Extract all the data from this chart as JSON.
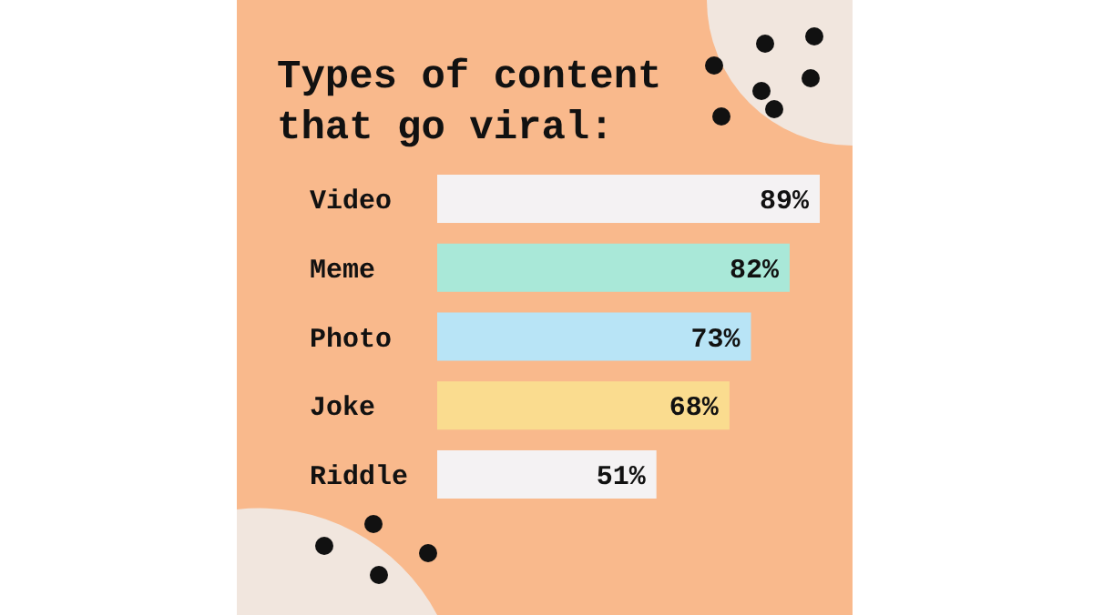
{
  "chart_data": {
    "type": "bar",
    "orientation": "horizontal",
    "title": "Types of content\nthat go viral:",
    "categories": [
      "Video",
      "Meme",
      "Photo",
      "Joke",
      "Riddle"
    ],
    "values": [
      89,
      82,
      73,
      68,
      51
    ],
    "colors": [
      "#f4f2f3",
      "#a9e8d8",
      "#b8e4f6",
      "#fadc8f",
      "#f4f2f3"
    ],
    "value_labels": [
      "89%",
      "82%",
      "73%",
      "68%",
      "51%"
    ]
  }
}
